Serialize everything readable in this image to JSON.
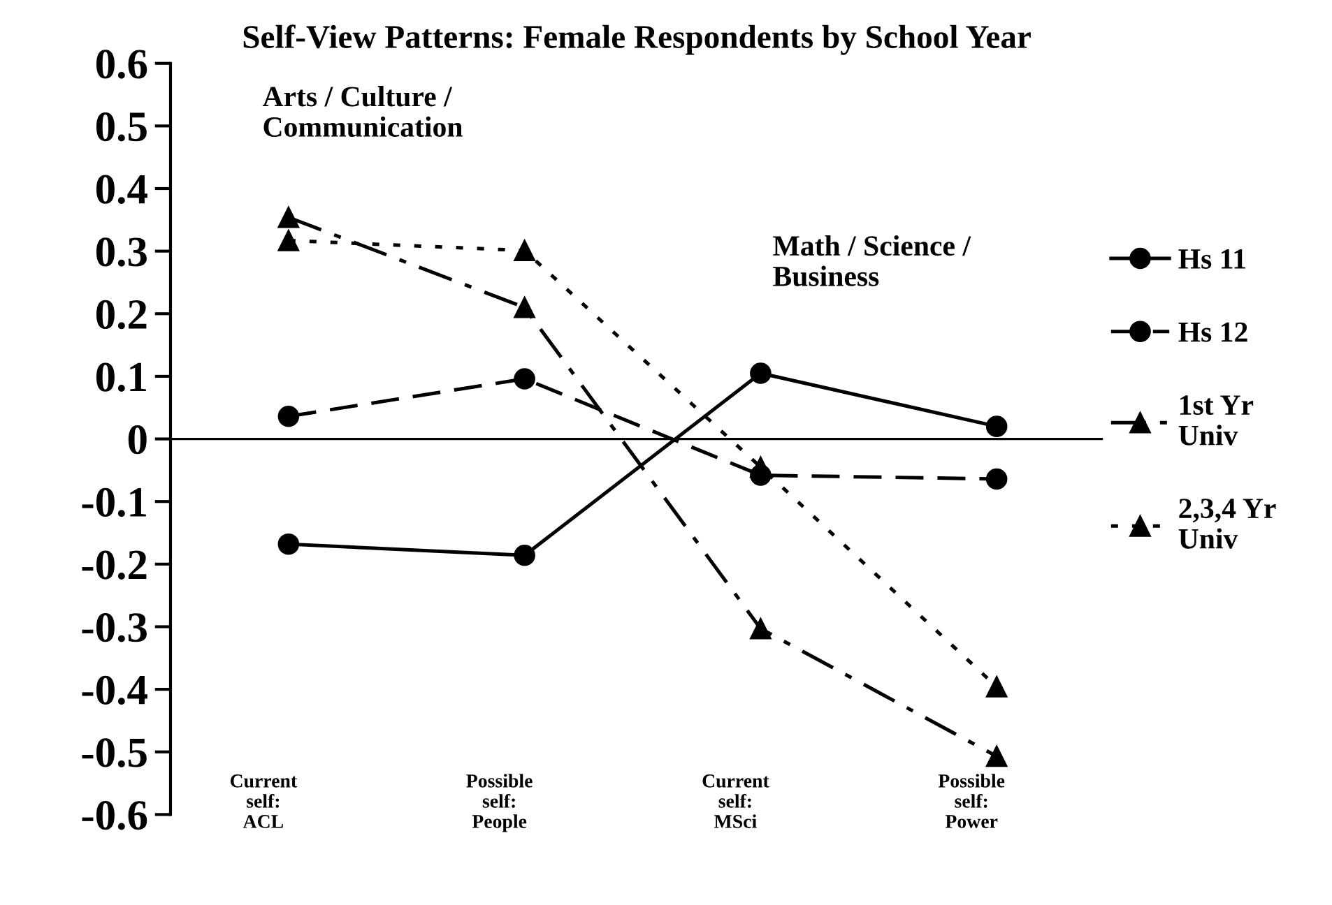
{
  "chart_data": {
    "type": "line",
    "title": "Self-View Patterns: Female Respondents by School Year",
    "categories": [
      "Current\nself:\nACL",
      "Possible\nself:\nPeople",
      "Current\nself:\nMSci",
      "Possible\nself:\nPower"
    ],
    "series": [
      {
        "name": "Hs 11",
        "color": "#000000",
        "marker": "circle",
        "line_style": "solid",
        "values": [
          -0.168,
          -0.186,
          0.105,
          0.02
        ]
      },
      {
        "name": "Hs 12",
        "color": "#000000",
        "marker": "circle",
        "line_style": "dashed",
        "values": [
          0.036,
          0.096,
          -0.058,
          -0.064
        ]
      },
      {
        "name": "1st Yr\nUniv",
        "color": "#000000",
        "marker": "triangle",
        "line_style": "dashdot",
        "values": [
          0.354,
          0.21,
          -0.303,
          -0.507
        ]
      },
      {
        "name": "2,3,4 Yr\nUniv",
        "color": "#000000",
        "marker": "triangle",
        "line_style": "dotted",
        "values": [
          0.317,
          0.301,
          -0.045,
          -0.396
        ]
      }
    ],
    "ylim": [
      -0.6,
      0.6
    ],
    "yticks": [
      0.6,
      0.5,
      0.4,
      0.3,
      0.2,
      0.1,
      0,
      -0.1,
      -0.2,
      -0.3,
      -0.4,
      -0.5,
      -0.6
    ],
    "ref_lines": [
      {
        "axis": "y",
        "value": 0,
        "color": "#000000"
      }
    ],
    "annotations": [
      "Arts / Culture /\nCommunication",
      "Math / Science /\nBusiness"
    ],
    "grid": false,
    "legend": "right"
  }
}
